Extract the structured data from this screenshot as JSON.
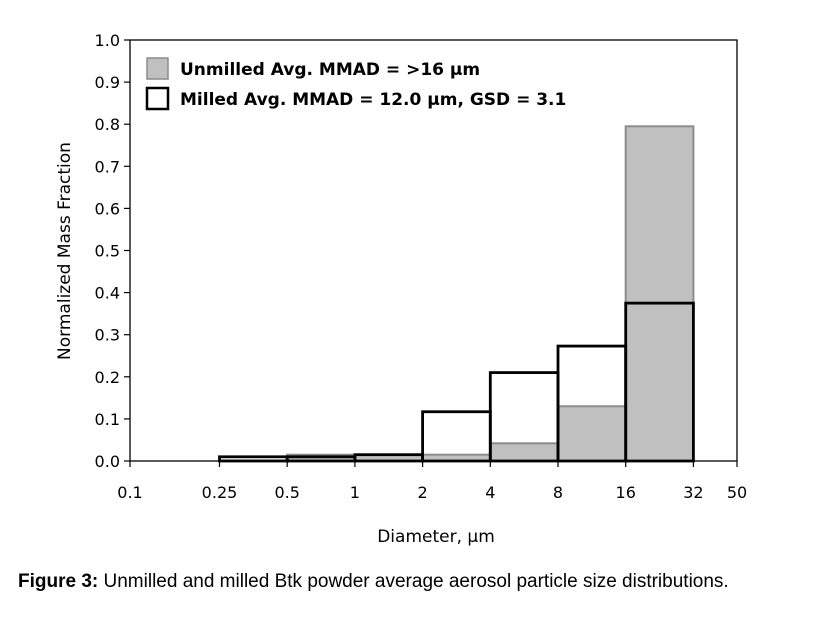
{
  "chart_data": {
    "type": "bar",
    "xscale": "log",
    "xlim": [
      0.1,
      50
    ],
    "ylim": [
      0,
      1.0
    ],
    "xlabel": "Diameter, µm",
    "ylabel": "Normalized Mass Fraction",
    "xticks": [
      0.1,
      0.25,
      0.5,
      1,
      2,
      4,
      8,
      16,
      32,
      50
    ],
    "xtick_labels": [
      "0.1",
      "0.25",
      "0.5",
      "1",
      "2",
      "4",
      "8",
      "16",
      "32",
      "50"
    ],
    "yticks": [
      0.0,
      0.1,
      0.2,
      0.3,
      0.4,
      0.5,
      0.6,
      0.7,
      0.8,
      0.9,
      1.0
    ],
    "ytick_labels": [
      "0.0",
      "0.1",
      "0.2",
      "0.3",
      "0.4",
      "0.5",
      "0.6",
      "0.7",
      "0.8",
      "0.9",
      "1.0"
    ],
    "bins": [
      [
        0.25,
        0.5
      ],
      [
        0.5,
        1
      ],
      [
        1,
        2
      ],
      [
        2,
        4
      ],
      [
        4,
        8
      ],
      [
        8,
        16
      ],
      [
        16,
        32
      ]
    ],
    "series": [
      {
        "name": "Unmilled Avg.  MMAD = >16 µm",
        "style": "filled",
        "fill": "#c0c0c0",
        "stroke": "#8c8c8c",
        "values": [
          0.0,
          0.015,
          0.015,
          0.015,
          0.042,
          0.13,
          0.795
        ]
      },
      {
        "name": "Milled Avg.  MMAD = 12.0 µm, GSD = 3.1",
        "style": "outline",
        "fill": "none",
        "stroke": "#000000",
        "values": [
          0.01,
          0.01,
          0.015,
          0.117,
          0.21,
          0.273,
          0.375
        ]
      }
    ],
    "legend": "top-left"
  },
  "caption": {
    "label": "Figure 3:",
    "text": " Unmilled and milled Btk powder average aerosol particle size distributions."
  }
}
